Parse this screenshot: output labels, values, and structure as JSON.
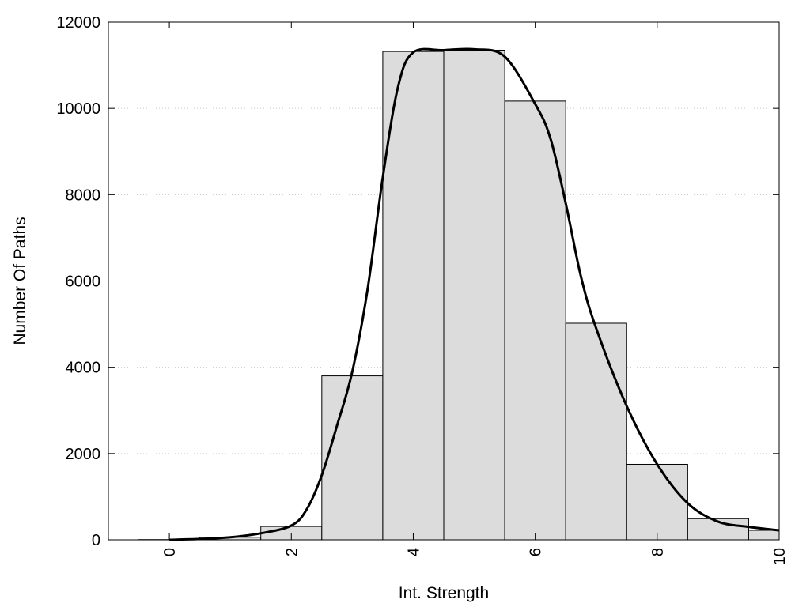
{
  "chart_data": {
    "type": "bar",
    "xlabel": "Int. Strength",
    "ylabel": "Number Of Paths",
    "xlim": [
      -1,
      10
    ],
    "ylim": [
      0,
      12000
    ],
    "x_ticks": [
      0,
      2,
      4,
      6,
      8,
      10
    ],
    "y_ticks": [
      0,
      2000,
      4000,
      6000,
      8000,
      10000,
      12000
    ],
    "grid": "horizontal dotted",
    "bar_color": "#dcdcdc",
    "bars": [
      {
        "x": 0,
        "value": 5
      },
      {
        "x": 1,
        "value": 60
      },
      {
        "x": 2,
        "value": 310
      },
      {
        "x": 3,
        "value": 3800
      },
      {
        "x": 4,
        "value": 11320
      },
      {
        "x": 5,
        "value": 11350
      },
      {
        "x": 6,
        "value": 10170
      },
      {
        "x": 7,
        "value": 5020
      },
      {
        "x": 8,
        "value": 1750
      },
      {
        "x": 9,
        "value": 490
      },
      {
        "x": 10,
        "value": 220
      }
    ],
    "curve": {
      "x": [
        0,
        0.5,
        1,
        1.5,
        2,
        2.25,
        2.5,
        2.75,
        3,
        3.25,
        3.5,
        3.75,
        4,
        4.5,
        5,
        5.5,
        6,
        6.25,
        6.5,
        6.75,
        7,
        7.5,
        8,
        8.5,
        9,
        9.5,
        10
      ],
      "y": [
        0,
        20,
        60,
        150,
        330,
        700,
        1500,
        2650,
        3900,
        5800,
        8400,
        10500,
        11300,
        11350,
        11370,
        11200,
        10100,
        9300,
        7800,
        6100,
        4900,
        3100,
        1750,
        850,
        420,
        300,
        220
      ]
    }
  }
}
